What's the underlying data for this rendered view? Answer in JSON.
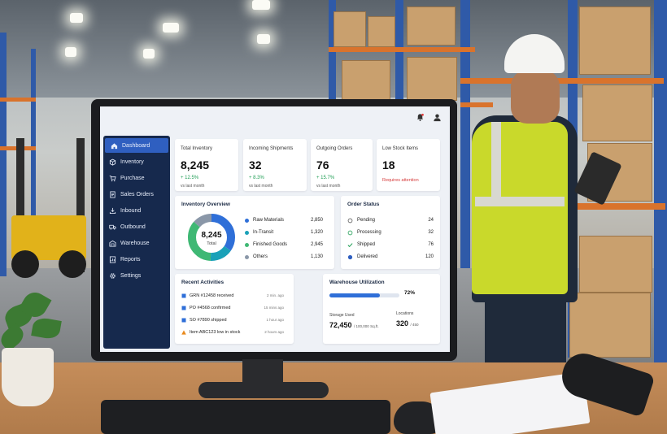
{
  "sidebar": {
    "items": [
      {
        "label": "Dashboard",
        "icon": "home-icon"
      },
      {
        "label": "Inventory",
        "icon": "box-icon"
      },
      {
        "label": "Purchase",
        "icon": "cart-icon"
      },
      {
        "label": "Sales Orders",
        "icon": "document-icon"
      },
      {
        "label": "Inbound",
        "icon": "inbound-icon"
      },
      {
        "label": "Outbound",
        "icon": "truck-icon"
      },
      {
        "label": "Warehouse",
        "icon": "warehouse-icon"
      },
      {
        "label": "Reports",
        "icon": "reports-icon"
      },
      {
        "label": "Settings",
        "icon": "gear-icon"
      }
    ]
  },
  "kpis": [
    {
      "title": "Total Inventory",
      "value": "8,245",
      "delta": "+ 12.5%",
      "sub": "vs last month"
    },
    {
      "title": "Incoming Shipments",
      "value": "32",
      "delta": "+ 8.3%",
      "sub": "vs last month"
    },
    {
      "title": "Outgoing Orders",
      "value": "76",
      "delta": "+ 15.7%",
      "sub": "vs last month"
    },
    {
      "title": "Low Stock Items",
      "value": "18",
      "alert": "Requires attention"
    }
  ],
  "inventory_overview": {
    "title": "Inventory Overview",
    "total_value": "8,245",
    "total_label": "Total",
    "colors": {
      "raw": "#2f6fd8",
      "transit": "#1aa1b8",
      "finished": "#3fb874",
      "others": "#8a97a8"
    },
    "rows": [
      {
        "label": "Raw Materials",
        "value": "2,850"
      },
      {
        "label": "In-Transit",
        "value": "1,320"
      },
      {
        "label": "Finished Goods",
        "value": "2,945"
      },
      {
        "label": "Others",
        "value": "1,130"
      }
    ]
  },
  "order_status": {
    "title": "Order Status",
    "rows": [
      {
        "label": "Pending",
        "value": "24"
      },
      {
        "label": "Processing",
        "value": "32"
      },
      {
        "label": "Shipped",
        "value": "76"
      },
      {
        "label": "Delivered",
        "value": "120"
      }
    ]
  },
  "recent_activities": {
    "title": "Recent Activities",
    "rows": [
      {
        "text": "GRN #12458 received",
        "time": "2 min. ago"
      },
      {
        "text": "PO #4568 confirmed",
        "time": "15 mins ago"
      },
      {
        "text": "SO #7890 shipped",
        "time": "1 hour ago"
      },
      {
        "text": "Item ABC123 low in stock",
        "time": "2 hours ago"
      }
    ]
  },
  "warehouse_utilization": {
    "title": "Warehouse Utilization",
    "percent_label": "72%",
    "percent": 72,
    "storage_label": "Storage Used",
    "storage_value": "72,450",
    "storage_total": "/ 100,000 Sq.ft.",
    "locations_label": "Locations",
    "locations_value": "320",
    "locations_total": "/ 450"
  }
}
